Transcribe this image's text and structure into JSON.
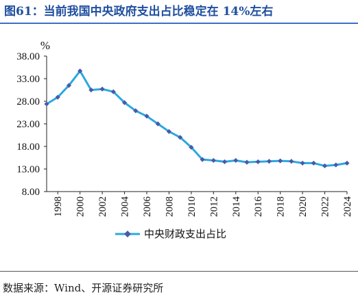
{
  "header": {
    "title": "图61：当前我国中央政府支出占比稳定在 14%左右"
  },
  "footer": {
    "source": "数据来源：Wind、开源证券研究所"
  },
  "colors": {
    "title": "#1f4e9e",
    "line": "#29a8e0",
    "marker": "#4a5aa8"
  },
  "chart_data": {
    "type": "line",
    "unit_label": "%",
    "y_ticks": [
      "38.00",
      "33.00",
      "28.00",
      "23.00",
      "18.00",
      "13.00",
      "8.00"
    ],
    "x_ticks": [
      "1998",
      "2000",
      "2002",
      "2004",
      "2006",
      "2008",
      "2010",
      "2012",
      "2014",
      "2016",
      "2018",
      "2020",
      "2022",
      "2024"
    ],
    "ylim": [
      8,
      38
    ],
    "xlim": [
      1997,
      2024
    ],
    "grid": false,
    "legend_position": "bottom",
    "series": [
      {
        "name": "中央财政支出占比",
        "x": [
          1997,
          1998,
          1999,
          2000,
          2001,
          2002,
          2003,
          2004,
          2005,
          2006,
          2007,
          2008,
          2009,
          2010,
          2011,
          2012,
          2013,
          2014,
          2015,
          2016,
          2017,
          2018,
          2019,
          2020,
          2021,
          2022,
          2023,
          2024
        ],
        "y": [
          27.4,
          28.9,
          31.5,
          34.7,
          30.5,
          30.7,
          30.1,
          27.7,
          25.9,
          24.7,
          23.0,
          21.3,
          20.0,
          17.8,
          15.1,
          14.9,
          14.6,
          14.9,
          14.5,
          14.6,
          14.7,
          14.8,
          14.7,
          14.3,
          14.3,
          13.7,
          13.9,
          14.3
        ]
      }
    ]
  }
}
